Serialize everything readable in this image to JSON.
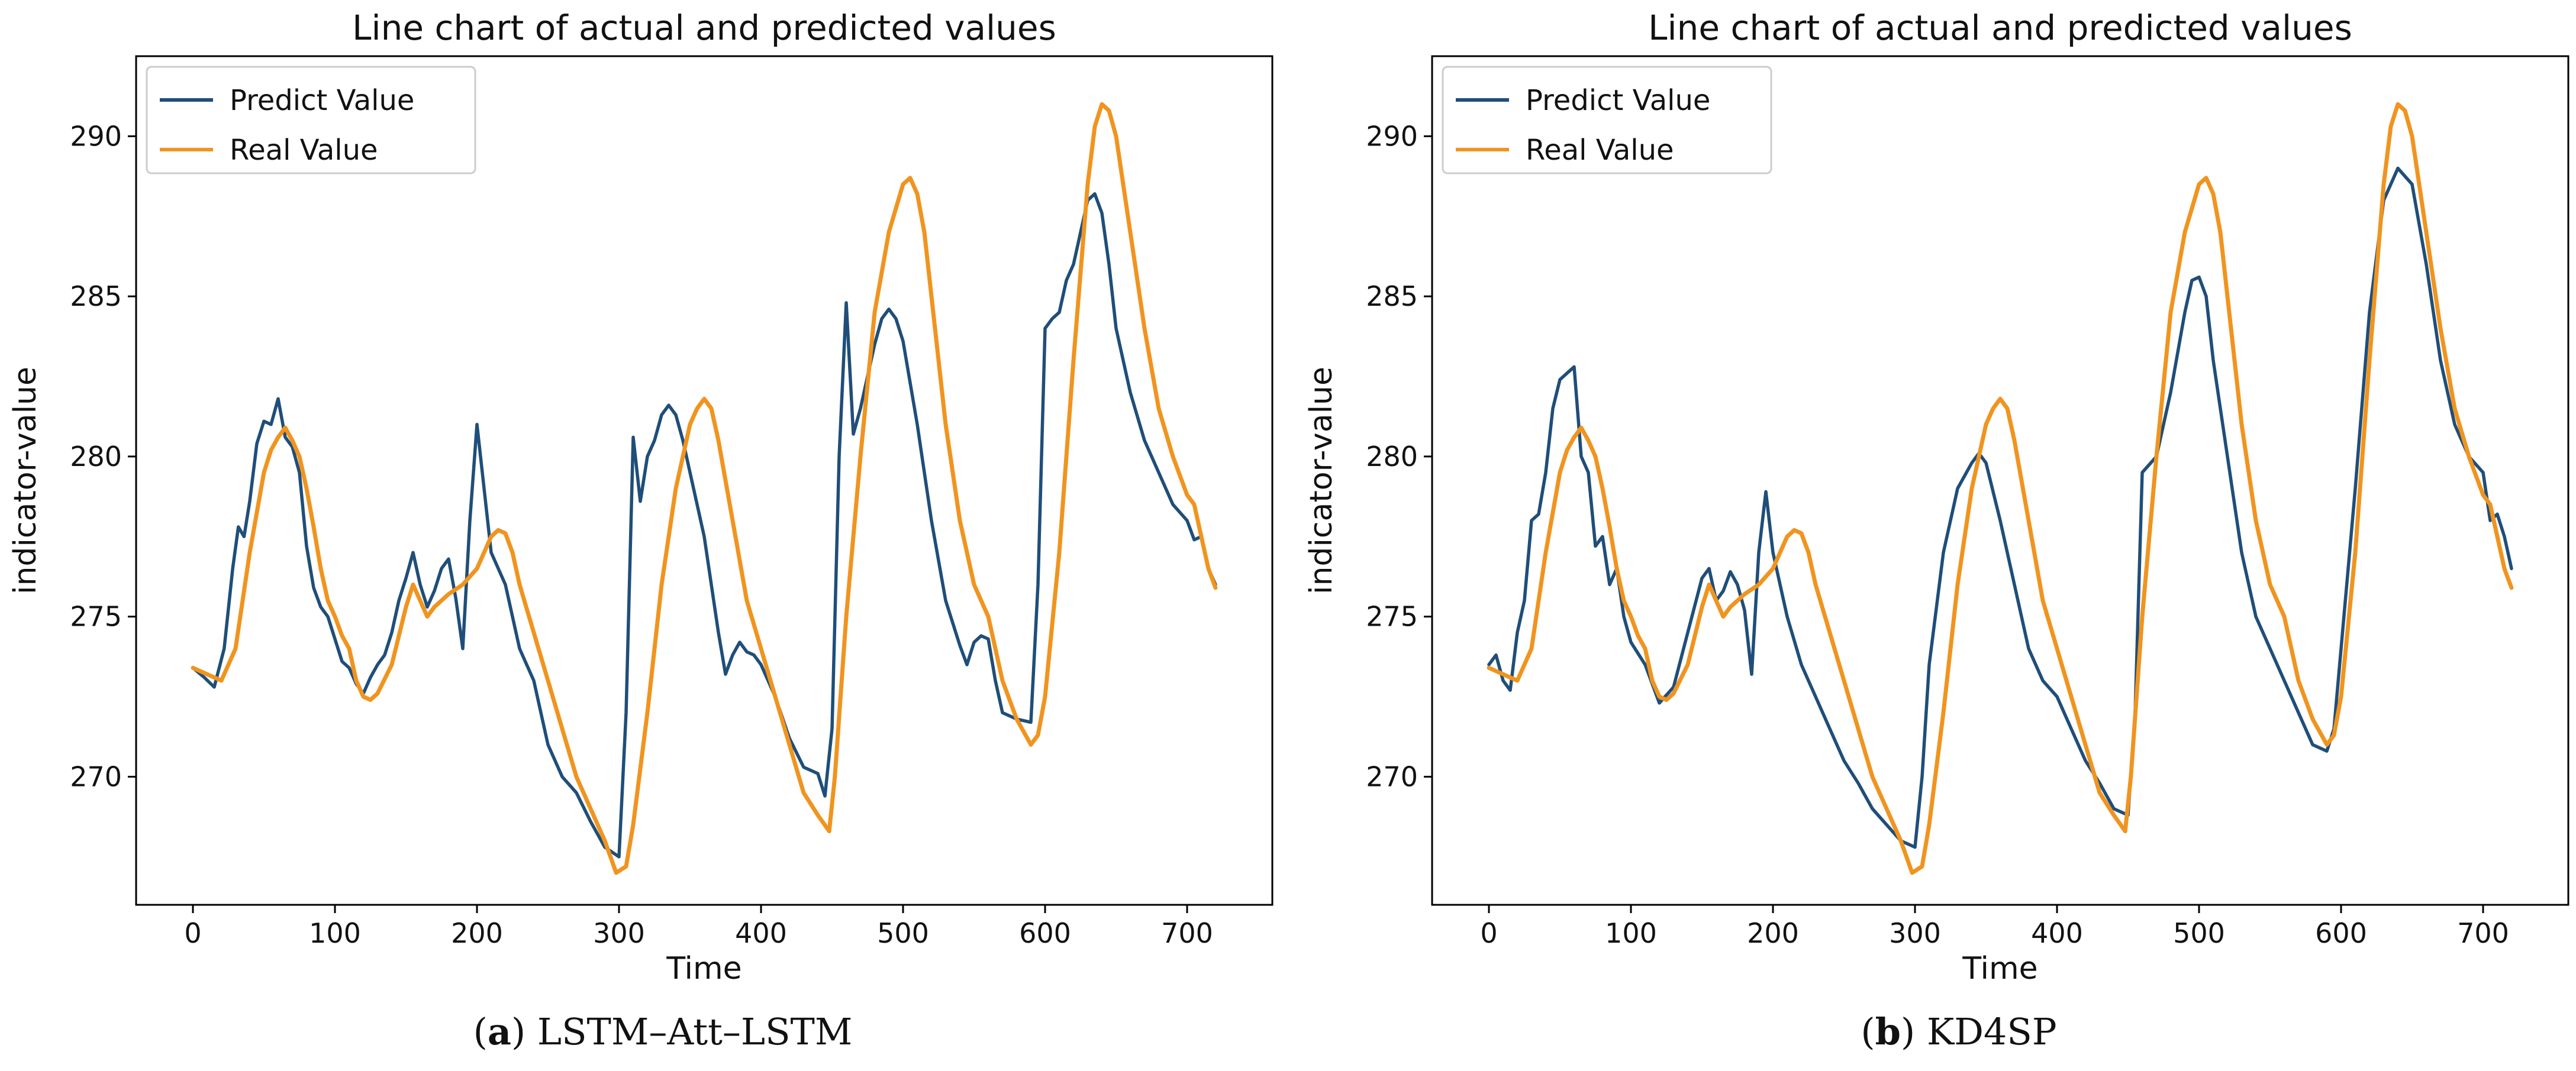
{
  "chart_data": [
    {
      "type": "line",
      "panel": "a",
      "title": "Line chart of actual and predicted values",
      "xlabel": "Time",
      "ylabel": "indicator-value",
      "xlim": [
        -40,
        760
      ],
      "ylim": [
        266,
        292.5
      ],
      "xticks": [
        0,
        100,
        200,
        300,
        400,
        500,
        600,
        700
      ],
      "yticks": [
        270,
        275,
        280,
        285,
        290
      ],
      "grid": false,
      "legend": "top-left",
      "series": [
        {
          "name": "Predict Value",
          "color": "#1f4e79",
          "x": [
            0,
            8,
            15,
            22,
            28,
            32,
            36,
            40,
            45,
            50,
            55,
            60,
            65,
            70,
            75,
            80,
            85,
            90,
            95,
            100,
            105,
            110,
            115,
            120,
            125,
            130,
            135,
            140,
            145,
            150,
            155,
            160,
            165,
            170,
            175,
            180,
            185,
            190,
            195,
            200,
            205,
            210,
            215,
            220,
            225,
            230,
            235,
            240,
            245,
            250,
            260,
            270,
            280,
            290,
            300,
            305,
            310,
            315,
            320,
            325,
            330,
            335,
            340,
            345,
            350,
            355,
            360,
            365,
            370,
            375,
            380,
            385,
            390,
            395,
            400,
            410,
            420,
            430,
            440,
            445,
            450,
            455,
            460,
            465,
            470,
            475,
            480,
            485,
            490,
            495,
            500,
            510,
            520,
            530,
            540,
            545,
            550,
            555,
            560,
            565,
            570,
            580,
            590,
            595,
            600,
            605,
            610,
            615,
            620,
            625,
            630,
            635,
            640,
            645,
            650,
            660,
            670,
            680,
            690,
            700,
            705,
            710,
            715,
            720
          ],
          "values": [
            273.4,
            273.1,
            272.8,
            274.0,
            276.5,
            277.8,
            277.5,
            278.6,
            280.4,
            281.1,
            281.0,
            281.8,
            280.6,
            280.3,
            279.5,
            277.2,
            275.9,
            275.3,
            275.0,
            274.3,
            273.6,
            273.4,
            272.9,
            272.6,
            273.1,
            273.5,
            273.8,
            274.5,
            275.5,
            276.2,
            277.0,
            276.0,
            275.3,
            275.8,
            276.5,
            276.8,
            275.6,
            274.0,
            278.0,
            281.0,
            279.0,
            277.0,
            276.5,
            276.0,
            275.0,
            274.0,
            273.5,
            273.0,
            272.0,
            271.0,
            270.0,
            269.5,
            268.6,
            267.8,
            267.5,
            272.0,
            280.6,
            278.6,
            280.0,
            280.5,
            281.3,
            281.6,
            281.3,
            280.5,
            279.5,
            278.5,
            277.5,
            276.0,
            274.5,
            273.2,
            273.8,
            274.2,
            273.9,
            273.8,
            273.5,
            272.5,
            271.2,
            270.3,
            270.1,
            269.4,
            271.5,
            280.0,
            284.8,
            280.7,
            281.5,
            282.5,
            283.5,
            284.3,
            284.6,
            284.3,
            283.6,
            281.0,
            278.0,
            275.5,
            274.1,
            273.5,
            274.2,
            274.4,
            274.3,
            273.0,
            272.0,
            271.8,
            271.7,
            276.0,
            284.0,
            284.3,
            284.5,
            285.5,
            286.0,
            287.0,
            288.0,
            288.2,
            287.6,
            286.0,
            284.0,
            282.0,
            280.5,
            279.5,
            278.5,
            278.0,
            277.4,
            277.5,
            276.5,
            276.0
          ]
        },
        {
          "name": "Real Value",
          "color": "#f0941f",
          "x": [
            0,
            10,
            20,
            30,
            40,
            50,
            55,
            60,
            65,
            70,
            75,
            80,
            85,
            90,
            95,
            100,
            105,
            110,
            115,
            120,
            125,
            130,
            140,
            150,
            155,
            160,
            165,
            170,
            180,
            190,
            200,
            205,
            210,
            215,
            220,
            225,
            230,
            240,
            250,
            260,
            270,
            280,
            290,
            298,
            305,
            310,
            320,
            330,
            340,
            350,
            355,
            360,
            365,
            370,
            380,
            390,
            400,
            410,
            420,
            430,
            440,
            448,
            452,
            460,
            470,
            480,
            490,
            500,
            505,
            510,
            515,
            520,
            530,
            540,
            550,
            555,
            560,
            570,
            580,
            590,
            595,
            600,
            610,
            620,
            630,
            635,
            640,
            645,
            650,
            660,
            670,
            680,
            690,
            700,
            705,
            710,
            715,
            720
          ],
          "values": [
            273.4,
            273.2,
            273.0,
            274.0,
            277.0,
            279.5,
            280.2,
            280.6,
            280.9,
            280.5,
            280.0,
            279.0,
            277.8,
            276.5,
            275.5,
            275.0,
            274.4,
            274.0,
            273.0,
            272.5,
            272.4,
            272.6,
            273.5,
            275.3,
            276.0,
            275.5,
            275.0,
            275.3,
            275.7,
            276.0,
            276.5,
            277.0,
            277.5,
            277.7,
            277.6,
            277.0,
            276.0,
            274.5,
            273.0,
            271.5,
            270.0,
            269.0,
            268.0,
            267.0,
            267.2,
            268.5,
            272.0,
            276.0,
            279.0,
            281.0,
            281.5,
            281.8,
            281.5,
            280.5,
            278.0,
            275.5,
            274.0,
            272.5,
            271.0,
            269.5,
            268.8,
            268.3,
            270.0,
            275.0,
            280.0,
            284.5,
            287.0,
            288.5,
            288.7,
            288.2,
            287.0,
            285.0,
            281.0,
            278.0,
            276.0,
            275.5,
            275.0,
            273.0,
            271.8,
            271.0,
            271.3,
            272.5,
            277.0,
            283.0,
            288.5,
            290.3,
            291.0,
            290.8,
            290.0,
            287.0,
            284.0,
            281.5,
            280.0,
            278.8,
            278.5,
            277.5,
            276.5,
            275.9
          ]
        }
      ]
    },
    {
      "type": "line",
      "panel": "b",
      "title": "Line chart of actual and predicted values",
      "xlabel": "Time",
      "ylabel": "indicator-value",
      "xlim": [
        -40,
        760
      ],
      "ylim": [
        266,
        292.5
      ],
      "xticks": [
        0,
        100,
        200,
        300,
        400,
        500,
        600,
        700
      ],
      "yticks": [
        270,
        275,
        280,
        285,
        290
      ],
      "grid": false,
      "legend": "top-left",
      "series": [
        {
          "name": "Predict Value",
          "color": "#1f4e79",
          "x": [
            0,
            5,
            10,
            15,
            20,
            25,
            30,
            35,
            40,
            45,
            50,
            55,
            60,
            65,
            70,
            75,
            80,
            85,
            90,
            95,
            100,
            110,
            120,
            130,
            140,
            150,
            155,
            160,
            165,
            170,
            175,
            180,
            185,
            190,
            195,
            200,
            205,
            210,
            220,
            230,
            240,
            250,
            260,
            270,
            280,
            290,
            300,
            305,
            310,
            320,
            330,
            340,
            345,
            350,
            360,
            370,
            380,
            390,
            400,
            410,
            420,
            430,
            440,
            450,
            455,
            460,
            470,
            480,
            490,
            495,
            500,
            505,
            510,
            520,
            530,
            540,
            550,
            560,
            570,
            580,
            590,
            595,
            600,
            610,
            620,
            630,
            640,
            650,
            660,
            670,
            680,
            690,
            700,
            705,
            710,
            715,
            720
          ],
          "values": [
            273.5,
            273.8,
            273.0,
            272.7,
            274.5,
            275.5,
            278.0,
            278.2,
            279.5,
            281.5,
            282.4,
            282.6,
            282.8,
            280.0,
            279.5,
            277.2,
            277.5,
            276.0,
            276.5,
            275.0,
            274.2,
            273.5,
            272.3,
            272.8,
            274.5,
            276.2,
            276.5,
            275.5,
            275.8,
            276.4,
            276.0,
            275.2,
            273.2,
            277.0,
            278.9,
            277.0,
            276.0,
            275.0,
            273.5,
            272.5,
            271.5,
            270.5,
            269.8,
            269.0,
            268.5,
            268.0,
            267.8,
            270.0,
            273.5,
            277.0,
            279.0,
            279.8,
            280.1,
            279.8,
            278.0,
            276.0,
            274.0,
            273.0,
            272.5,
            271.5,
            270.5,
            269.8,
            269.0,
            268.8,
            272.0,
            279.5,
            280.0,
            282.0,
            284.5,
            285.5,
            285.6,
            285.0,
            283.0,
            280.0,
            277.0,
            275.0,
            274.0,
            273.0,
            272.0,
            271.0,
            270.8,
            271.5,
            274.0,
            279.0,
            284.5,
            288.0,
            289.0,
            288.5,
            286.0,
            283.0,
            281.0,
            280.0,
            279.5,
            278.0,
            278.2,
            277.5,
            276.5
          ]
        },
        {
          "name": "Real Value",
          "color": "#f0941f",
          "x": [
            0,
            10,
            20,
            30,
            40,
            50,
            55,
            60,
            65,
            70,
            75,
            80,
            85,
            90,
            95,
            100,
            105,
            110,
            115,
            120,
            125,
            130,
            140,
            150,
            155,
            160,
            165,
            170,
            180,
            190,
            200,
            205,
            210,
            215,
            220,
            225,
            230,
            240,
            250,
            260,
            270,
            280,
            290,
            298,
            305,
            310,
            320,
            330,
            340,
            350,
            355,
            360,
            365,
            370,
            380,
            390,
            400,
            410,
            420,
            430,
            440,
            448,
            452,
            460,
            470,
            480,
            490,
            500,
            505,
            510,
            515,
            520,
            530,
            540,
            550,
            555,
            560,
            570,
            580,
            590,
            595,
            600,
            610,
            620,
            630,
            635,
            640,
            645,
            650,
            660,
            670,
            680,
            690,
            700,
            705,
            710,
            715,
            720
          ],
          "values": [
            273.4,
            273.2,
            273.0,
            274.0,
            277.0,
            279.5,
            280.2,
            280.6,
            280.9,
            280.5,
            280.0,
            279.0,
            277.8,
            276.5,
            275.5,
            275.0,
            274.4,
            274.0,
            273.0,
            272.5,
            272.4,
            272.6,
            273.5,
            275.3,
            276.0,
            275.5,
            275.0,
            275.3,
            275.7,
            276.0,
            276.5,
            277.0,
            277.5,
            277.7,
            277.6,
            277.0,
            276.0,
            274.5,
            273.0,
            271.5,
            270.0,
            269.0,
            268.0,
            267.0,
            267.2,
            268.5,
            272.0,
            276.0,
            279.0,
            281.0,
            281.5,
            281.8,
            281.5,
            280.5,
            278.0,
            275.5,
            274.0,
            272.5,
            271.0,
            269.5,
            268.8,
            268.3,
            270.0,
            275.0,
            280.0,
            284.5,
            287.0,
            288.5,
            288.7,
            288.2,
            287.0,
            285.0,
            281.0,
            278.0,
            276.0,
            275.5,
            275.0,
            273.0,
            271.8,
            271.0,
            271.3,
            272.5,
            277.0,
            283.0,
            288.5,
            290.3,
            291.0,
            290.8,
            290.0,
            287.0,
            284.0,
            281.5,
            280.0,
            278.8,
            278.5,
            277.5,
            276.5,
            275.9
          ]
        }
      ]
    }
  ],
  "captions": [
    {
      "label": "(a)",
      "letter": "a",
      "text": " LSTM–Att–LSTM"
    },
    {
      "label": "(b)",
      "letter": "b",
      "text": " KD4SP"
    }
  ]
}
